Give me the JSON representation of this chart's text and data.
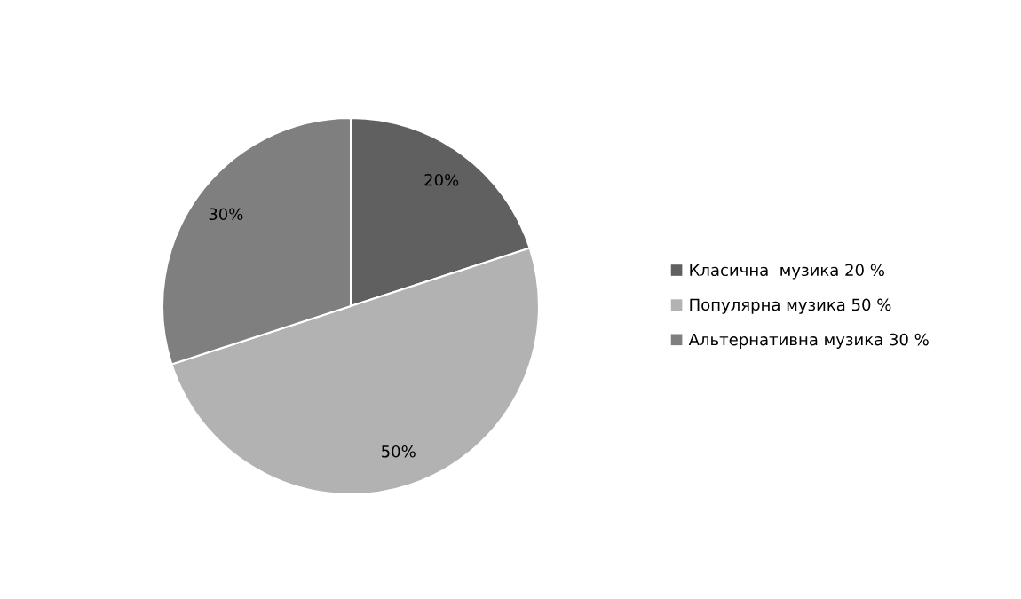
{
  "chart_data": {
    "type": "pie",
    "categories": [
      "Класична  музика 20 %",
      "Популярна музика 50 %",
      "Альтернативна музика 30 %"
    ],
    "values": [
      20,
      50,
      30
    ],
    "colors": [
      "#606060",
      "#b2b2b2",
      "#7f7f7f"
    ],
    "value_labels": [
      "20%",
      "50%",
      "30%"
    ],
    "legend": "right"
  }
}
